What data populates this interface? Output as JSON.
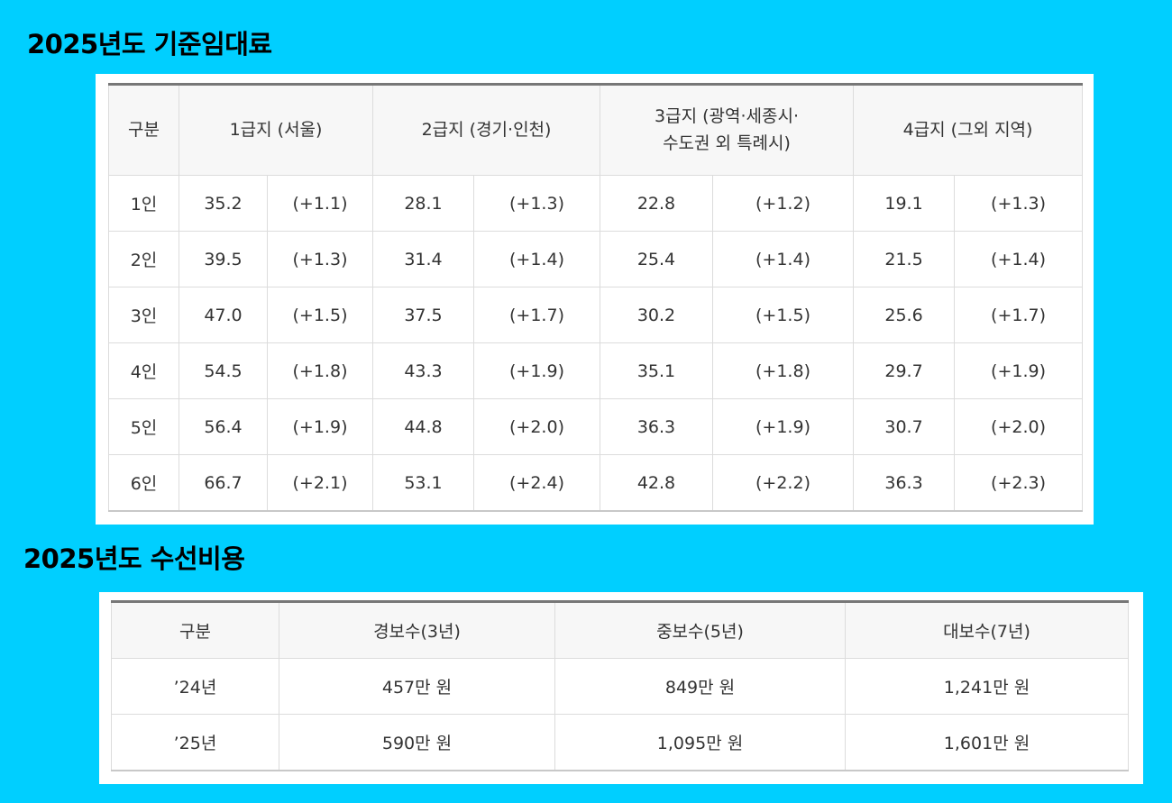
{
  "rent_section": {
    "title": "2025년도 기준임대료",
    "header": {
      "category": "구분",
      "region1": "1급지 (서울)",
      "region2": "2급지 (경기·인천)",
      "region3_line1": "3급지 (광역·세종시·",
      "region3_line2": "수도권 외 특례시)",
      "region4": "4급지 (그외 지역)"
    },
    "rows": [
      {
        "label": "1인",
        "r1": "35.2",
        "r1d": "(+1.1)",
        "r2": "28.1",
        "r2d": "(+1.3)",
        "r3": "22.8",
        "r3d": "(+1.2)",
        "r4": "19.1",
        "r4d": "(+1.3)"
      },
      {
        "label": "2인",
        "r1": "39.5",
        "r1d": "(+1.3)",
        "r2": "31.4",
        "r2d": "(+1.4)",
        "r3": "25.4",
        "r3d": "(+1.4)",
        "r4": "21.5",
        "r4d": "(+1.4)"
      },
      {
        "label": "3인",
        "r1": "47.0",
        "r1d": "(+1.5)",
        "r2": "37.5",
        "r2d": "(+1.7)",
        "r3": "30.2",
        "r3d": "(+1.5)",
        "r4": "25.6",
        "r4d": "(+1.7)"
      },
      {
        "label": "4인",
        "r1": "54.5",
        "r1d": "(+1.8)",
        "r2": "43.3",
        "r2d": "(+1.9)",
        "r3": "35.1",
        "r3d": "(+1.8)",
        "r4": "29.7",
        "r4d": "(+1.9)"
      },
      {
        "label": "5인",
        "r1": "56.4",
        "r1d": "(+1.9)",
        "r2": "44.8",
        "r2d": "(+2.0)",
        "r3": "36.3",
        "r3d": "(+1.9)",
        "r4": "30.7",
        "r4d": "(+2.0)"
      },
      {
        "label": "6인",
        "r1": "66.7",
        "r1d": "(+2.1)",
        "r2": "53.1",
        "r2d": "(+2.4)",
        "r3": "42.8",
        "r3d": "(+2.2)",
        "r4": "36.3",
        "r4d": "(+2.3)"
      }
    ]
  },
  "repair_section": {
    "title": "2025년도 수선비용",
    "header": {
      "category": "구분",
      "light": "경보수(3년)",
      "medium": "중보수(5년)",
      "major": "대보수(7년)"
    },
    "rows": [
      {
        "label": "’24년",
        "light": "457만 원",
        "medium": "849만 원",
        "major": "1,241만 원"
      },
      {
        "label": "’25년",
        "light": "590만 원",
        "medium": "1,095만 원",
        "major": "1,601만 원"
      }
    ]
  }
}
